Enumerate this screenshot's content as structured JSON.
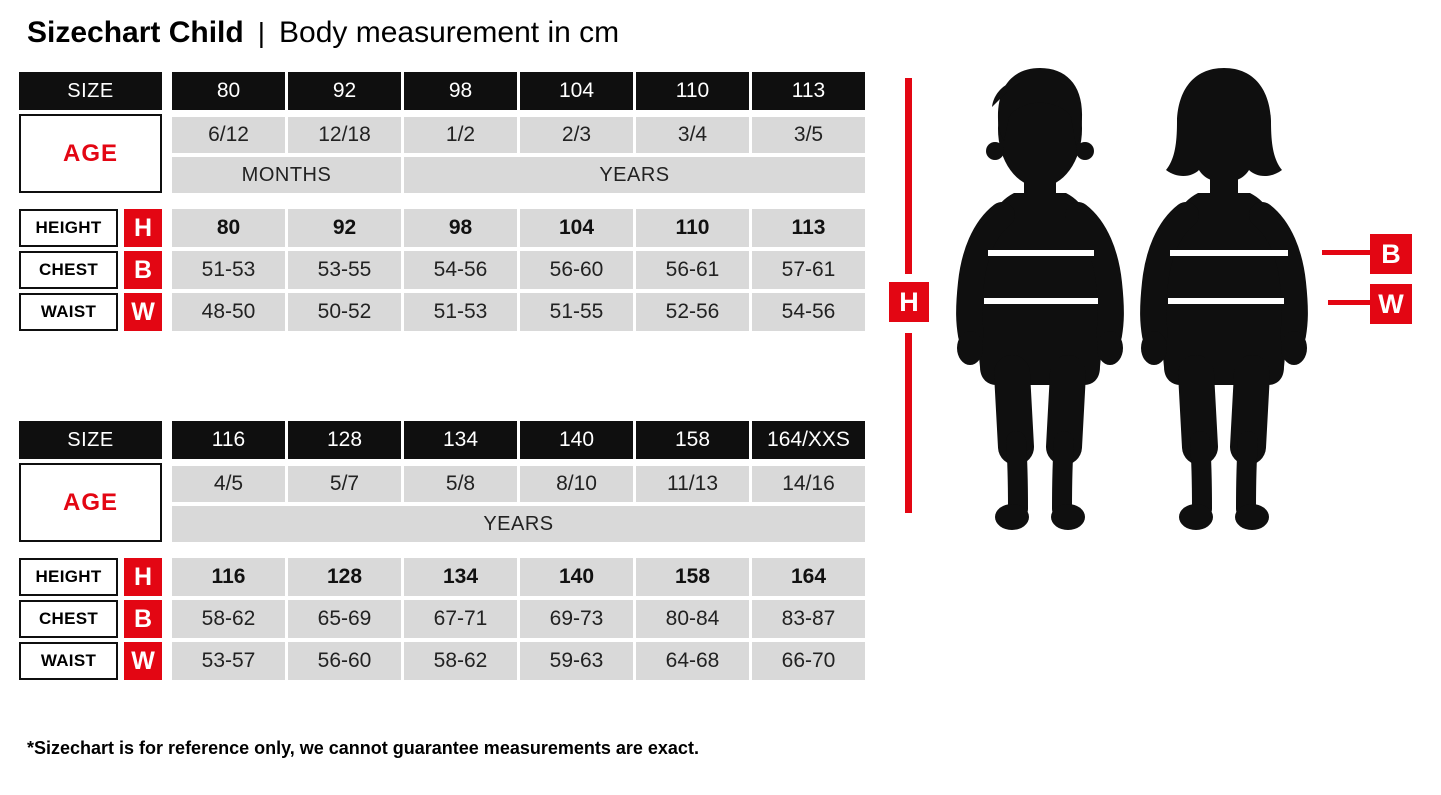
{
  "header": {
    "title": "Sizechart Child",
    "separator": "|",
    "subtitle": "Body measurement in cm"
  },
  "tables": [
    {
      "size_label": "SIZE",
      "age_label": "AGE",
      "sizes": [
        "80",
        "92",
        "98",
        "104",
        "110",
        "113"
      ],
      "ages": [
        "6/12",
        "12/18",
        "1/2",
        "2/3",
        "3/4",
        "3/5"
      ],
      "age_units": [
        {
          "label": "MONTHS",
          "span": 2
        },
        {
          "label": "YEARS",
          "span": 4
        }
      ],
      "height": {
        "label": "HEIGHT",
        "badge": "H",
        "values": [
          "80",
          "92",
          "98",
          "104",
          "110",
          "113"
        ]
      },
      "chest": {
        "label": "CHEST",
        "badge": "B",
        "values": [
          "51-53",
          "53-55",
          "54-56",
          "56-60",
          "56-61",
          "57-61"
        ]
      },
      "waist": {
        "label": "WAIST",
        "badge": "W",
        "values": [
          "48-50",
          "50-52",
          "51-53",
          "51-55",
          "52-56",
          "54-56"
        ]
      }
    },
    {
      "size_label": "SIZE",
      "age_label": "AGE",
      "sizes": [
        "116",
        "128",
        "134",
        "140",
        "158",
        "164/XXS"
      ],
      "ages": [
        "4/5",
        "5/7",
        "5/8",
        "8/10",
        "11/13",
        "14/16"
      ],
      "age_units": [
        {
          "label": "YEARS",
          "span": 6
        }
      ],
      "height": {
        "label": "HEIGHT",
        "badge": "H",
        "values": [
          "116",
          "128",
          "134",
          "140",
          "158",
          "164"
        ]
      },
      "chest": {
        "label": "CHEST",
        "badge": "B",
        "values": [
          "58-62",
          "65-69",
          "67-71",
          "69-73",
          "80-84",
          "83-87"
        ]
      },
      "waist": {
        "label": "WAIST",
        "badge": "W",
        "values": [
          "53-57",
          "56-60",
          "58-62",
          "59-63",
          "64-68",
          "66-70"
        ]
      }
    }
  ],
  "figure": {
    "height_label": "H",
    "chest_label": "B",
    "waist_label": "W"
  },
  "footnote": "*Sizechart is for reference only, we cannot guarantee measurements are exact.",
  "colors": {
    "black": "#0f0f0f",
    "cell_gray": "#d9d9d9",
    "red": "#e30613"
  }
}
